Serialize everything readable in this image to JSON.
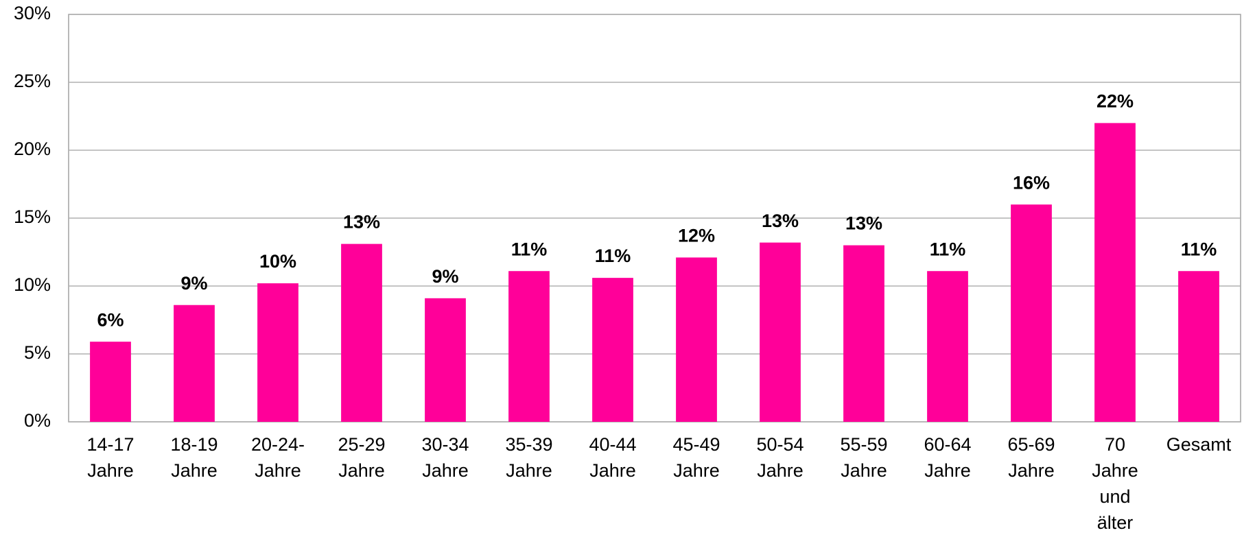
{
  "chart_data": {
    "type": "bar",
    "categories": [
      "14-17 Jahre",
      "18-19 Jahre",
      "20-24- Jahre",
      "25-29 Jahre",
      "30-34 Jahre",
      "35-39 Jahre",
      "40-44 Jahre",
      "45-49 Jahre",
      "50-54 Jahre",
      "55-59 Jahre",
      "60-64 Jahre",
      "65-69 Jahre",
      "70 Jahre und älter",
      "Gesamt"
    ],
    "values": [
      5.9,
      8.6,
      10.2,
      13.1,
      9.1,
      11.1,
      10.6,
      12.1,
      13.2,
      13.0,
      11.1,
      16.0,
      22.0,
      11.1
    ],
    "value_labels": [
      "6%",
      "9%",
      "10%",
      "13%",
      "9%",
      "11%",
      "11%",
      "12%",
      "13%",
      "13%",
      "11%",
      "16%",
      "22%",
      "11%"
    ],
    "color": "#ff0099",
    "ylim": [
      0,
      30
    ],
    "yticks": [
      {
        "value": 0,
        "label": "0%"
      },
      {
        "value": 5,
        "label": "5%"
      },
      {
        "value": 10,
        "label": "10%"
      },
      {
        "value": 15,
        "label": "15%"
      },
      {
        "value": 20,
        "label": "20%"
      },
      {
        "value": 25,
        "label": "25%"
      },
      {
        "value": 30,
        "label": "30%"
      }
    ],
    "grid": true
  }
}
